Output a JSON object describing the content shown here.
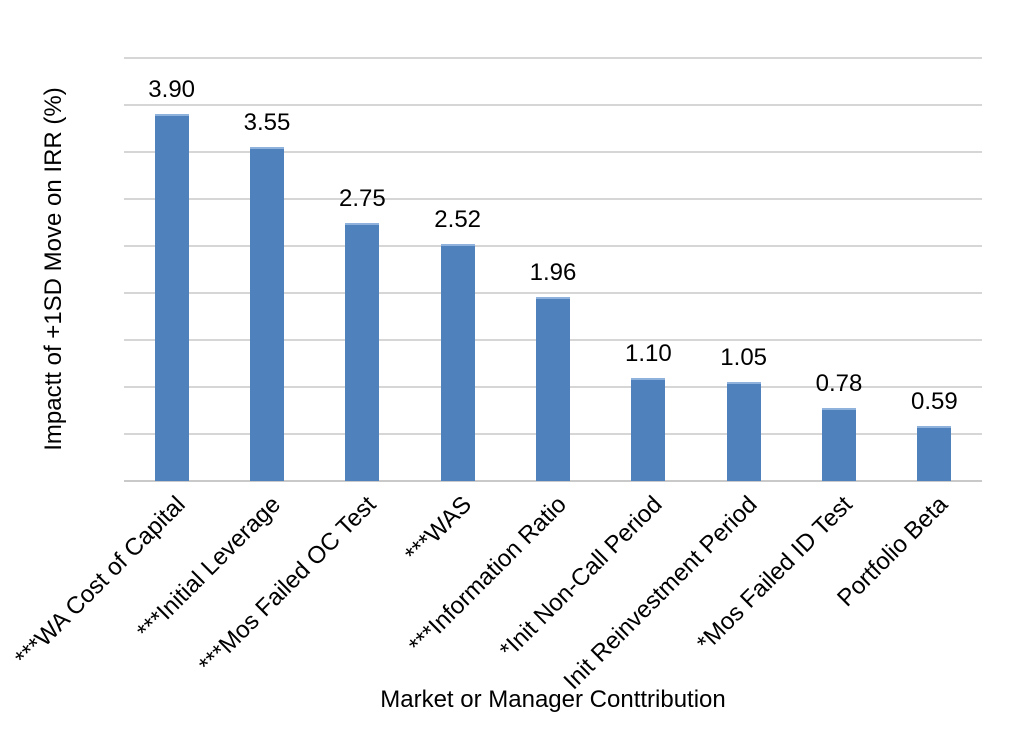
{
  "chart_data": {
    "type": "bar",
    "title": "",
    "categories": [
      "***WA Cost of Capital",
      "***Initial Leverage",
      "***Mos Failed OC Test",
      "***WAS",
      "***Information Ratio",
      "*Init Non-Call Period",
      "Init Reinvestment Period",
      "*Mos Failed ID Test",
      "Portfolio Beta"
    ],
    "values": [
      3.9,
      3.55,
      2.75,
      2.52,
      1.96,
      1.1,
      1.05,
      0.78,
      0.59
    ],
    "value_labels": [
      "3.90",
      "3.55",
      "2.75",
      "2.52",
      "1.96",
      "1.10",
      "1.05",
      "0.78",
      "0.59"
    ],
    "xlabel": "Market or Manager Conttribution",
    "ylabel": "Impactt of +1SD Move on IRR (%)",
    "ylim": [
      0,
      4.5
    ],
    "gridline_interval": 0.5,
    "grid": true,
    "legend": false,
    "y_tick_labels_visible": false,
    "colors": {
      "bar": "#4f81bd",
      "bar_top_edge": "#8fb2dd",
      "gridline": "#d6d6d6",
      "axis_line": "#c9c9c9",
      "text": "#000000",
      "background": "#ffffff"
    }
  }
}
